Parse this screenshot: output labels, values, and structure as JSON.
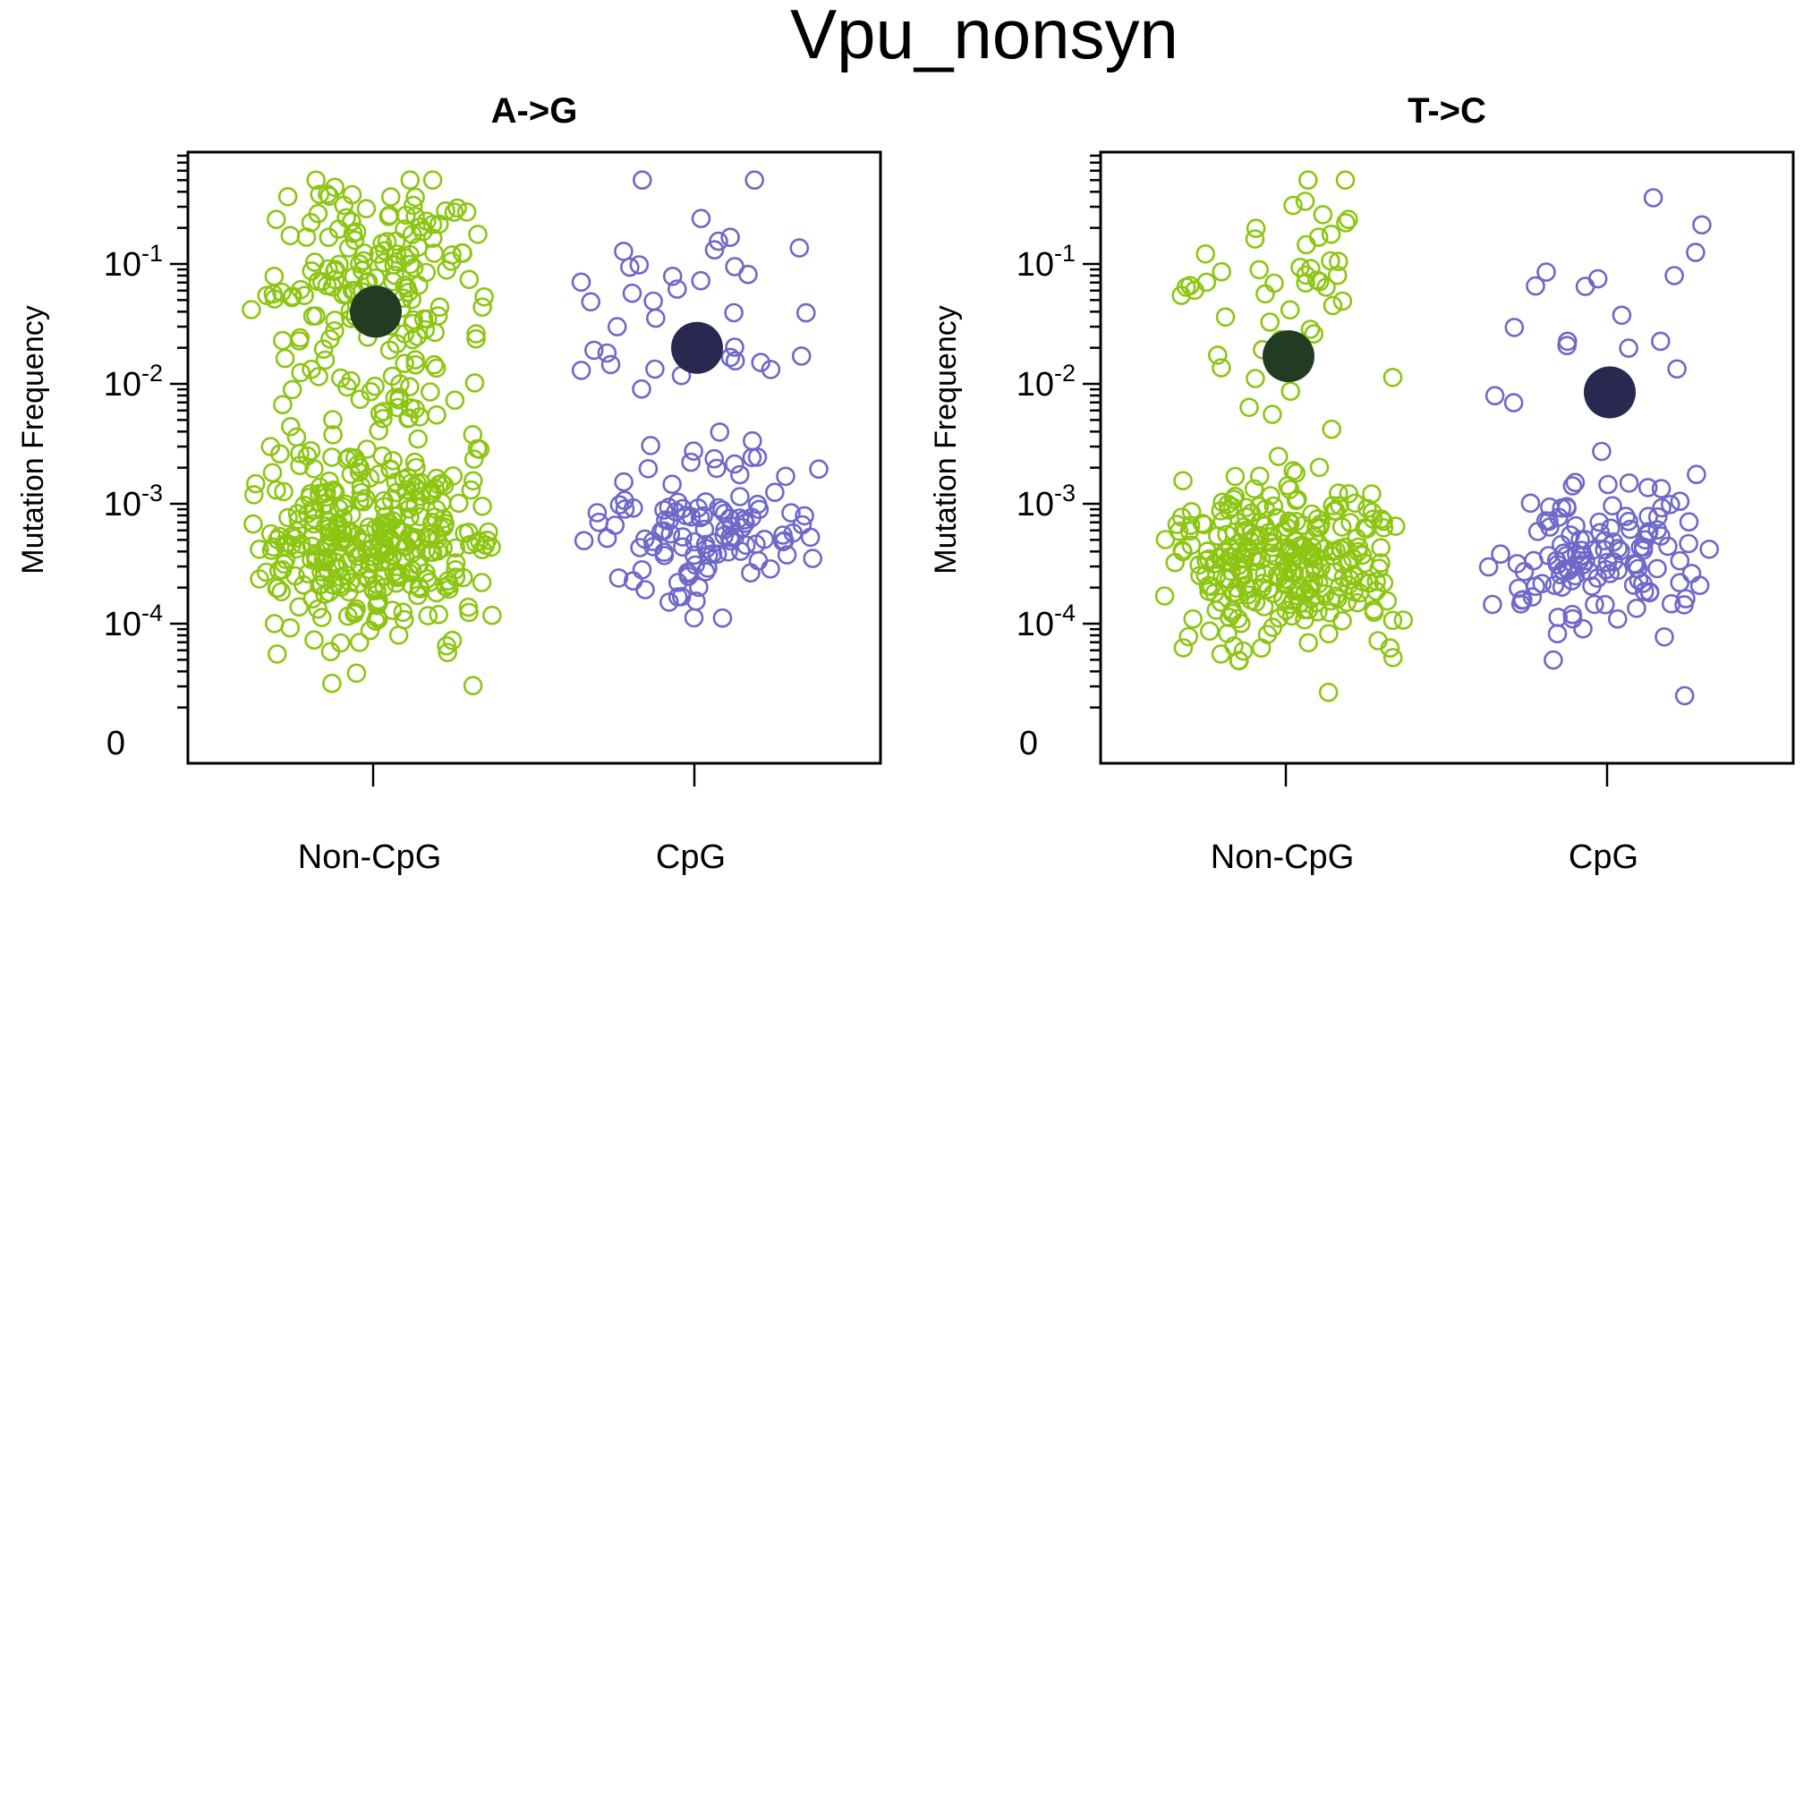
{
  "chart_data": {
    "type": "scatter",
    "title": "Vpu_nonsyn",
    "ylabel": "Mutation Frequency",
    "yscale": "log",
    "categories": [
      "Non-CpG",
      "CpG"
    ],
    "y_ticks": [
      {
        "value": 0,
        "label": "0"
      },
      {
        "value": 0.0001,
        "label": "10",
        "exp": "-4"
      },
      {
        "value": 0.001,
        "label": "10",
        "exp": "-3"
      },
      {
        "value": 0.01,
        "label": "10",
        "exp": "-2"
      },
      {
        "value": 0.1,
        "label": "10",
        "exp": "-1"
      }
    ],
    "colors": {
      "Non-CpG": {
        "points": "#8CC613",
        "mean": "#213C22"
      },
      "CpG": {
        "points": "#7067C8",
        "mean": "#282850"
      }
    },
    "panels": [
      {
        "title": "A->G",
        "series": [
          {
            "category": "Non-CpG",
            "mean": 0.04,
            "n": 520,
            "groups": [
              {
                "share": 0.3,
                "center": 0.08,
                "spread": 0.45
              },
              {
                "share": 0.08,
                "center": 0.006,
                "spread": 0.35
              },
              {
                "share": 0.62,
                "center": 0.0005,
                "spread": 0.42
              }
            ]
          },
          {
            "category": "CpG",
            "mean": 0.02,
            "n": 150,
            "groups": [
              {
                "share": 0.25,
                "center": 0.035,
                "spread": 0.5
              },
              {
                "share": 0.75,
                "center": 0.0006,
                "spread": 0.35
              }
            ]
          }
        ]
      },
      {
        "title": "T->C",
        "series": [
          {
            "category": "Non-CpG",
            "mean": 0.017,
            "n": 330,
            "groups": [
              {
                "share": 0.15,
                "center": 0.07,
                "spread": 0.42
              },
              {
                "share": 0.85,
                "center": 0.0003,
                "spread": 0.35
              }
            ]
          },
          {
            "category": "CpG",
            "mean": 0.0085,
            "n": 140,
            "groups": [
              {
                "share": 0.12,
                "center": 0.05,
                "spread": 0.5
              },
              {
                "share": 0.88,
                "center": 0.0004,
                "spread": 0.32
              }
            ]
          }
        ]
      }
    ]
  }
}
